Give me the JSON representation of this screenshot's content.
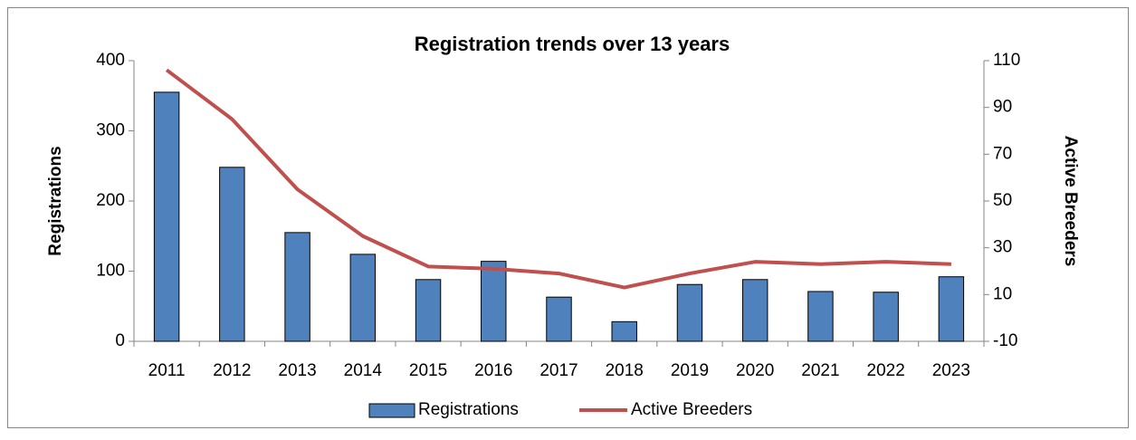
{
  "chart_data": {
    "type": "bar_line",
    "title": "Registration trends over 13 years",
    "ylabel": "Registrations",
    "y2label": "Active Breeders",
    "categories": [
      "2011",
      "2012",
      "2013",
      "2014",
      "2015",
      "2016",
      "2017",
      "2018",
      "2019",
      "2020",
      "2021",
      "2022",
      "2023"
    ],
    "series": [
      {
        "name": "Registrations",
        "type": "bar",
        "color": "#4f81bd",
        "values": [
          355,
          248,
          155,
          124,
          88,
          114,
          63,
          28,
          81,
          88,
          71,
          70,
          92
        ]
      },
      {
        "name": "Active Breeders",
        "type": "line",
        "axis": "y2",
        "color": "#c0504d",
        "values": [
          106,
          85,
          55,
          35,
          22,
          21,
          19,
          13,
          19,
          24,
          23,
          24,
          23
        ]
      }
    ],
    "ylim": [
      0,
      400
    ],
    "yticks": [
      0,
      100,
      200,
      300,
      400
    ],
    "y2lim": [
      -10,
      110
    ],
    "y2ticks": [
      -10,
      10,
      30,
      50,
      70,
      90,
      110
    ],
    "grid": false,
    "legend": "bottom"
  }
}
